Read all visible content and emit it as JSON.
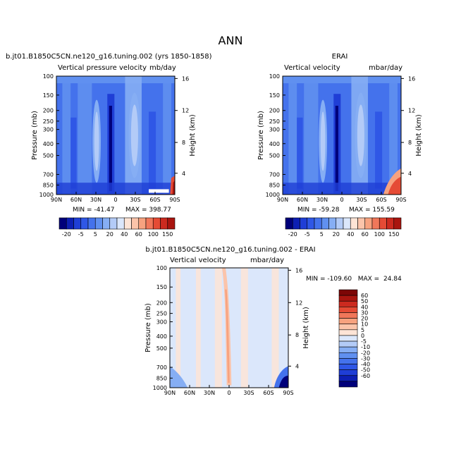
{
  "page": {
    "title": "ANN",
    "diff_title": "b.jt01.B1850C5CN.ne120_g16.tuning.002 - ERAI"
  },
  "colors": {
    "neg": [
      "#00007a",
      "#0d1fb3",
      "#1f3ed6",
      "#2f57e6",
      "#4472ec",
      "#6090f0",
      "#86aef4",
      "#b3cbf7"
    ],
    "near_zero": "#dbe7fb",
    "pos": [
      "#fde4d6",
      "#fbc4aa",
      "#f7a27f",
      "#f1775a",
      "#e54b35",
      "#cc2a1f",
      "#a9150f",
      "#7c0606"
    ],
    "diff_neg": [
      "#00007a",
      "#0d1fb3",
      "#1f3ed6",
      "#2f57e6",
      "#4472ec",
      "#6090f0",
      "#86aef4",
      "#b3cbf7"
    ],
    "diff_zero": "#dbe7fb",
    "diff_pos": [
      "#fde4d6",
      "#fbc4aa",
      "#f7a27f",
      "#f1775a",
      "#e54b35",
      "#cc2a1f",
      "#a9150f",
      "#7c0606"
    ]
  },
  "chart_data": [
    {
      "type": "heatmap",
      "id": "model",
      "title": "b.jt01.B1850C5CN.ne120_g16.tuning.002 (yrs 1850-1858)",
      "subtitle_left": "Vertical pressure velocity",
      "subtitle_right": "mb/day",
      "ylabel": "Pressure (mb)",
      "ylabel_right": "Height (km)",
      "x_ticks": [
        "90N",
        "60N",
        "30N",
        "0",
        "30S",
        "60S",
        "90S"
      ],
      "y_ticks": [
        "100",
        "150",
        "200",
        "250",
        "300",
        "400",
        "500",
        "700",
        "850",
        "1000"
      ],
      "y2_ticks": [
        "16",
        "12",
        "8",
        "4"
      ],
      "min_label": "MIN = -41.47",
      "max_label": "MAX = 398.77",
      "colorbar_labels": [
        "-20",
        "-5",
        "5",
        "20",
        "40",
        "60",
        "100",
        "150"
      ]
    },
    {
      "type": "heatmap",
      "id": "erai",
      "title": "ERAI",
      "subtitle_left": "Vertical velocity",
      "subtitle_right": "mbar/day",
      "ylabel": "Pressure (mb)",
      "ylabel_right": "Height (km)",
      "x_ticks": [
        "90N",
        "60N",
        "30N",
        "0",
        "30S",
        "60S",
        "90S"
      ],
      "y_ticks": [
        "100",
        "150",
        "200",
        "250",
        "300",
        "400",
        "500",
        "700",
        "850",
        "1000"
      ],
      "y2_ticks": [
        "16",
        "12",
        "8",
        "4"
      ],
      "min_label": "MIN = -59.28",
      "max_label": "MAX = 155.59",
      "colorbar_labels": [
        "-20",
        "-5",
        "5",
        "20",
        "40",
        "60",
        "100",
        "150"
      ]
    },
    {
      "type": "heatmap",
      "id": "diff",
      "subtitle_left": "Vertical velocity",
      "subtitle_right": "mbar/day",
      "ylabel": "Pressure (mb)",
      "ylabel_right": "Height (km)",
      "x_ticks": [
        "90N",
        "60N",
        "30N",
        "0",
        "30S",
        "60S",
        "90S"
      ],
      "y_ticks": [
        "100",
        "150",
        "200",
        "250",
        "300",
        "400",
        "500",
        "700",
        "850",
        "1000"
      ],
      "y2_ticks": [
        "16",
        "12",
        "8",
        "4"
      ],
      "minmax_label": "MIN = -109.60   MAX =  24.84",
      "colorbar_labels": [
        "60",
        "50",
        "40",
        "30",
        "20",
        "10",
        "5",
        "0",
        "-5",
        "-10",
        "-20",
        "-30",
        "-40",
        "-50",
        "-60"
      ]
    }
  ]
}
